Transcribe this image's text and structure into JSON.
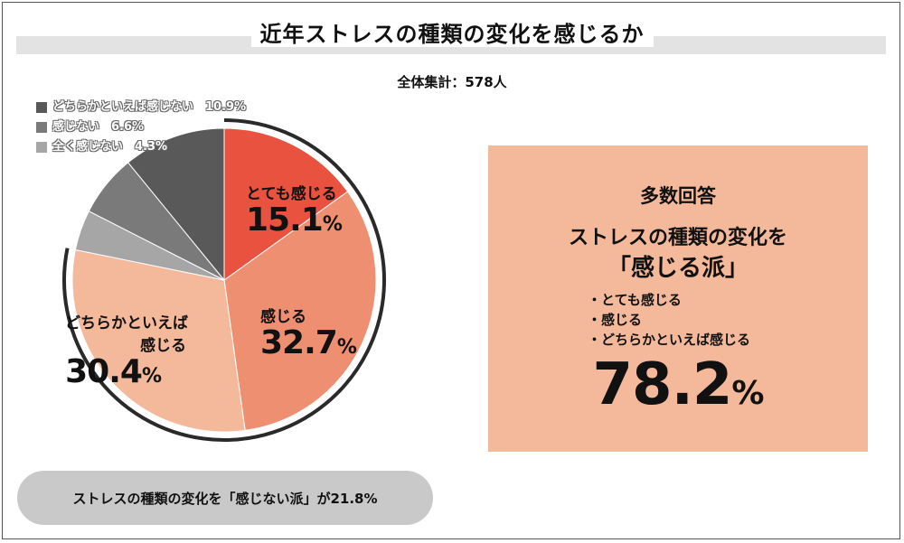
{
  "title": "近年ストレスの種類の変化を感じるか",
  "total_label": "全体集計：578人",
  "colors": {
    "very": "#e8523f",
    "feel": "#ef8f72",
    "somewhat": "#f4b99a",
    "somewhat_not": "#595959",
    "not": "#7a7a7a",
    "not_at_all": "#a6a6a6",
    "box_bg": "#f4b99a",
    "pill_bg": "#c9c9c9"
  },
  "chart_data": {
    "type": "pie",
    "title": "近年ストレスの種類の変化を感じるか",
    "slices": [
      {
        "label": "とても感じる",
        "value": 15.1,
        "color": "#e8523f"
      },
      {
        "label": "感じる",
        "value": 32.7,
        "color": "#ef8f72"
      },
      {
        "label": "どちらかといえば感じる",
        "value": 30.4,
        "color": "#f4b99a"
      },
      {
        "label": "全く感じない",
        "value": 4.3,
        "color": "#a6a6a6"
      },
      {
        "label": "感じない",
        "value": 6.6,
        "color": "#7a7a7a"
      },
      {
        "label": "どちらかといえば感じない",
        "value": 10.9,
        "color": "#595959"
      }
    ],
    "slice_labels": [
      {
        "name": "とても感じる",
        "value": "15.1",
        "unit": "%"
      },
      {
        "name": "感じる",
        "value": "32.7",
        "unit": "%"
      },
      {
        "name_line1": "どちらかといえば",
        "name_line2": "感じる",
        "value": "30.4",
        "unit": "%"
      }
    ],
    "legend": [
      {
        "label": "どちらかといえば感じない　10.9%",
        "color": "#595959"
      },
      {
        "label": "感じない　6.6%",
        "color": "#7a7a7a"
      },
      {
        "label": "全く感じない　4.3%",
        "color": "#a6a6a6"
      }
    ],
    "legend_position": "top-left"
  },
  "summary_box": {
    "heading": "多数回答",
    "line1": "ストレスの種類の変化を",
    "line2": "「感じる派」",
    "items": [
      "とても感じる",
      "感じる",
      "どちらかといえば感じる"
    ],
    "total_value": "78.2",
    "total_unit": "%"
  },
  "footer_pill": "ストレスの種類の変化を「感じない派」が21.8%"
}
